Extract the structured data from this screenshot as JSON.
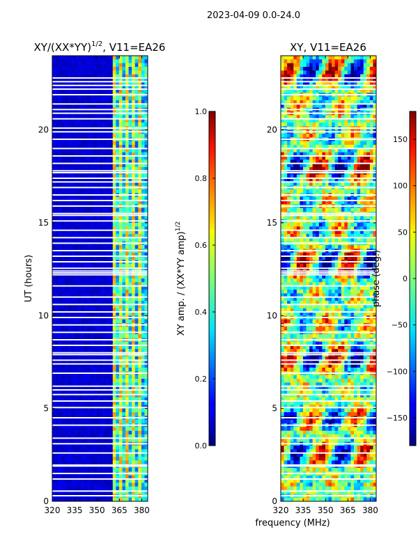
{
  "suptitle": "2023-04-09 0.0-24.0",
  "chart_data": [
    {
      "type": "heatmap",
      "title": "XY/(XX*YY)^1/2, V11=EA26",
      "title_base": "XY/(XX*YY)",
      "title_sup": "1/2",
      "title_rest": ", V11=EA26",
      "xlabel": "",
      "ylabel": "UT (hours)",
      "xlim": [
        320,
        384
      ],
      "ylim": [
        0,
        24
      ],
      "xticks": [
        320,
        335,
        350,
        365,
        380
      ],
      "yticks": [
        0,
        5,
        10,
        15,
        20
      ],
      "colorbar": {
        "label": "XY amp. / (XX*YY amp)^1/2",
        "label_base": "XY amp. / (XX*YY amp)",
        "label_sup": "1/2",
        "range": [
          0.0,
          1.0
        ],
        "ticks": [
          "0.0",
          "0.2",
          "0.4",
          "0.6",
          "0.8",
          "1.0"
        ],
        "tick_values": [
          0.0,
          0.2,
          0.4,
          0.6,
          0.8,
          1.0
        ]
      },
      "description_values": {
        "low_band_level": 0.05,
        "high_band_level": 0.45,
        "high_band_start_mhz": 361
      }
    },
    {
      "type": "heatmap",
      "title": "XY, V11=EA26",
      "xlabel": "frequency (MHz)",
      "ylabel": "",
      "xlim": [
        320,
        384
      ],
      "ylim": [
        0,
        24
      ],
      "xticks": [
        320,
        335,
        350,
        365,
        380
      ],
      "yticks": [
        0,
        5,
        10,
        15,
        20
      ],
      "colorbar": {
        "label": "phase (deg.)",
        "range": [
          -180,
          180
        ],
        "ticks": [
          "−150",
          "−100",
          "−50",
          "0",
          "50",
          "100",
          "150"
        ],
        "tick_values": [
          -150,
          -100,
          -50,
          0,
          50,
          100,
          150
        ]
      }
    }
  ],
  "gap_rows_hours": [
    0.3,
    0.55,
    1.2,
    1.5,
    1.9,
    1.95,
    2.6,
    3.1,
    3.4,
    4.1,
    4.5,
    5.05,
    5.4,
    5.75,
    6.0,
    6.2,
    6.9,
    7.4,
    7.6,
    7.9,
    8.0,
    8.4,
    8.7,
    9.1,
    9.5,
    9.9,
    10.2,
    10.6,
    11.0,
    11.6,
    12.2,
    12.3,
    12.4,
    12.55,
    12.9,
    13.2,
    13.5,
    13.9,
    14.2,
    14.6,
    15.1,
    15.4,
    15.5,
    15.9,
    16.2,
    16.5,
    16.9,
    17.2,
    17.4,
    17.7,
    17.8,
    18.2,
    18.6,
    19.0,
    19.5,
    19.9,
    20.1,
    20.6,
    20.9,
    21.1,
    21.4,
    21.9,
    22.2,
    22.4,
    22.6,
    22.8
  ]
}
